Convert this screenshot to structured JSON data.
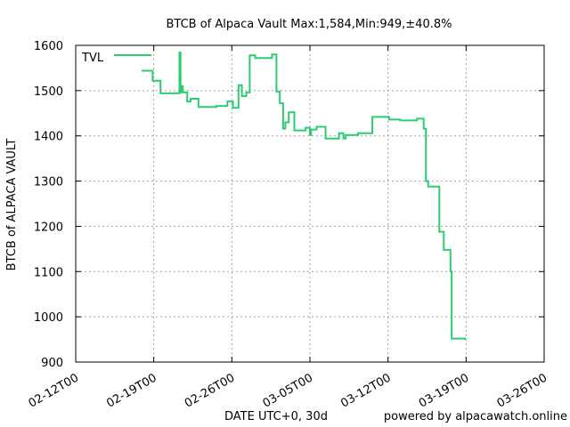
{
  "chart_data": {
    "type": "line",
    "title": "BTCB of Alpaca Vault Max:1,584,Min:949,±40.8%",
    "xlabel": "DATE UTC+0, 30d",
    "ylabel": "BTCB of ALPACA VAULT",
    "credit": "powered by alpacawatch.online",
    "x_tick_labels": [
      "02-12T00",
      "02-19T00",
      "02-26T00",
      "03-05T00",
      "03-12T00",
      "03-19T00",
      "03-26T00"
    ],
    "x_range_days": [
      0,
      42
    ],
    "ylim": [
      900,
      1600
    ],
    "y_ticks": [
      900,
      1000,
      1100,
      1200,
      1300,
      1400,
      1500,
      1600
    ],
    "grid": true,
    "legend_position": "top-left",
    "series": [
      {
        "name": "TVL",
        "color": "#2ecc71",
        "points": [
          [
            5.9,
            1544
          ],
          [
            6.9,
            1544
          ],
          [
            6.9,
            1522
          ],
          [
            7.6,
            1522
          ],
          [
            7.6,
            1494
          ],
          [
            9.3,
            1494
          ],
          [
            9.3,
            1584
          ],
          [
            9.4,
            1584
          ],
          [
            9.4,
            1496
          ],
          [
            9.5,
            1496
          ],
          [
            9.5,
            1510
          ],
          [
            9.6,
            1510
          ],
          [
            9.6,
            1496
          ],
          [
            10.0,
            1496
          ],
          [
            10.0,
            1476
          ],
          [
            10.3,
            1476
          ],
          [
            10.3,
            1482
          ],
          [
            11.0,
            1482
          ],
          [
            11.0,
            1464
          ],
          [
            12.6,
            1464
          ],
          [
            12.6,
            1466
          ],
          [
            13.6,
            1466
          ],
          [
            13.6,
            1476
          ],
          [
            14.1,
            1476
          ],
          [
            14.1,
            1462
          ],
          [
            14.6,
            1462
          ],
          [
            14.6,
            1512
          ],
          [
            14.9,
            1512
          ],
          [
            14.9,
            1488
          ],
          [
            15.3,
            1488
          ],
          [
            15.3,
            1496
          ],
          [
            15.6,
            1496
          ],
          [
            15.6,
            1578
          ],
          [
            16.1,
            1578
          ],
          [
            16.1,
            1572
          ],
          [
            17.6,
            1572
          ],
          [
            17.6,
            1580
          ],
          [
            18.0,
            1580
          ],
          [
            18.0,
            1498
          ],
          [
            18.3,
            1498
          ],
          [
            18.3,
            1472
          ],
          [
            18.6,
            1472
          ],
          [
            18.6,
            1416
          ],
          [
            18.8,
            1416
          ],
          [
            18.8,
            1430
          ],
          [
            19.1,
            1430
          ],
          [
            19.1,
            1452
          ],
          [
            19.6,
            1452
          ],
          [
            19.6,
            1412
          ],
          [
            20.6,
            1412
          ],
          [
            20.6,
            1418
          ],
          [
            21.0,
            1418
          ],
          [
            21.0,
            1402
          ],
          [
            21.1,
            1402
          ],
          [
            21.1,
            1414
          ],
          [
            21.6,
            1414
          ],
          [
            21.6,
            1420
          ],
          [
            22.4,
            1420
          ],
          [
            22.4,
            1394
          ],
          [
            23.6,
            1394
          ],
          [
            23.6,
            1406
          ],
          [
            24.0,
            1406
          ],
          [
            24.0,
            1394
          ],
          [
            24.2,
            1394
          ],
          [
            24.2,
            1402
          ],
          [
            25.3,
            1402
          ],
          [
            25.3,
            1406
          ],
          [
            26.6,
            1406
          ],
          [
            26.6,
            1442
          ],
          [
            28.1,
            1442
          ],
          [
            28.1,
            1436
          ],
          [
            29.1,
            1436
          ],
          [
            29.1,
            1434
          ],
          [
            30.6,
            1434
          ],
          [
            30.6,
            1438
          ],
          [
            31.2,
            1438
          ],
          [
            31.2,
            1416
          ],
          [
            31.4,
            1416
          ],
          [
            31.4,
            1300
          ],
          [
            31.6,
            1300
          ],
          [
            31.6,
            1288
          ],
          [
            32.6,
            1288
          ],
          [
            32.6,
            1188
          ],
          [
            33.0,
            1188
          ],
          [
            33.0,
            1148
          ],
          [
            33.6,
            1148
          ],
          [
            33.6,
            1100
          ],
          [
            33.7,
            1100
          ],
          [
            33.7,
            952
          ],
          [
            34.9,
            952
          ],
          [
            34.9,
            949
          ]
        ]
      }
    ]
  }
}
